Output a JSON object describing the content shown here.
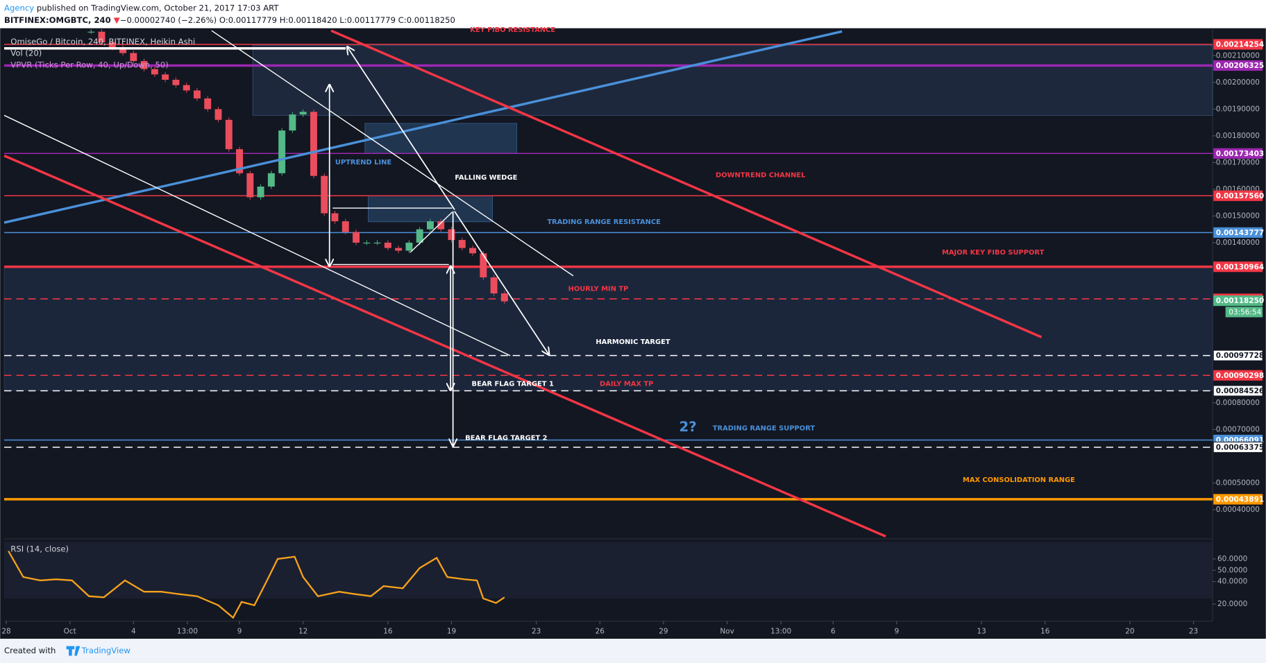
{
  "header": {
    "author": "Agency",
    "published": " published on TradingView.com, October 21, 2017 17:03 ART",
    "symbol": "BITFINEX:OMGBTC, 240 ",
    "arrow": "▼",
    "change": "−0.00002740 (−2.26%)",
    "ohlc": " O:0.00117779 H:0.00118420 L:0.00117779 C:0.00118250"
  },
  "footer": {
    "created": "Created with",
    "brand": "TradingView"
  },
  "chart_data": [
    {
      "type": "candlestick",
      "title": "OmiseGo / Bitcoin, 240, BITFINEX, Heikin Ashi",
      "indicators": [
        "Vol (20)",
        "VPVR (Ticks Per Row, 40, Up/Down, 50)"
      ],
      "x": [
        2,
        2.5,
        3,
        3.5,
        4,
        4.5,
        5,
        5.5,
        6,
        6.5,
        7,
        7.5,
        8,
        8.5,
        9,
        9.5,
        10,
        10.5,
        11,
        11.5,
        12,
        12.5,
        13,
        13.5,
        14,
        14.5,
        15,
        15.5,
        16,
        16.5,
        17,
        17.5,
        18,
        18.5,
        19,
        19.5,
        20,
        20.5,
        21,
        21.5
      ],
      "values": [
        0.00219,
        0.00215,
        0.00213,
        0.00211,
        0.00208,
        0.00205,
        0.00203,
        0.00201,
        0.00199,
        0.00197,
        0.00194,
        0.0019,
        0.00186,
        0.00175,
        0.00166,
        0.00157,
        0.00161,
        0.00166,
        0.00182,
        0.00188,
        0.00189,
        0.00165,
        0.00151,
        0.00148,
        0.00144,
        0.0014,
        0.0014,
        0.0014,
        0.00138,
        0.00137,
        0.0014,
        0.00145,
        0.00148,
        0.00145,
        0.00141,
        0.00138,
        0.00136,
        0.00127,
        0.00121,
        0.00118
      ],
      "up_color": "#53b987",
      "down_color": "#eb4d5c",
      "xlim": [
        -2.1,
        54.9
      ],
      "ylim": [
        0.0003,
        0.0022
      ],
      "yticks": [
        {
          "value": 0.0021,
          "label": "0.00210000"
        },
        {
          "value": 0.002,
          "label": "0.00200000"
        },
        {
          "value": 0.0019,
          "label": "0.00190000"
        },
        {
          "value": 0.0018,
          "label": "0.00180000"
        },
        {
          "value": 0.0017,
          "label": "0.00170000"
        },
        {
          "value": 0.0016,
          "label": "0.00160000"
        },
        {
          "value": 0.0015,
          "label": "0.00150000"
        },
        {
          "value": 0.0014,
          "label": "0.00140000"
        },
        {
          "value": 0.0008,
          "label": "0.00080000"
        },
        {
          "value": 0.0007,
          "label": "0.00070000"
        },
        {
          "value": 0.0005,
          "label": "0.00050000"
        },
        {
          "value": 0.0004,
          "label": "0.00040000"
        }
      ],
      "levels": [
        {
          "value": 0.00214254,
          "label": "0.00214254",
          "color": "#f23645",
          "style": "solid"
        },
        {
          "value": 0.00206325,
          "label": "0.00206325",
          "color": "#9c27b0",
          "style": "thick"
        },
        {
          "value": 0.00173403,
          "label": "0.00173403",
          "color": "#9c27b0",
          "style": "solid"
        },
        {
          "value": 0.0015756,
          "label": "0.00157560",
          "color": "#f23645",
          "style": "solid"
        },
        {
          "value": 0.00143777,
          "label": "0.00143777",
          "color": "#4a90d9",
          "style": "solid"
        },
        {
          "value": 0.00130964,
          "label": "0.00130964",
          "color": "#f23645",
          "style": "thick"
        },
        {
          "value": 0.00118947,
          "label": "0.00118947",
          "color": "#f23645",
          "style": "dashed"
        },
        {
          "value": 0.0011842,
          "label": "0.00118420",
          "color": "#f23645",
          "style": "none"
        },
        {
          "value": 0.0011825,
          "label": "0.00118250",
          "color": "#53b987",
          "style": "none"
        },
        {
          "value": 0.00097728,
          "label": "0.00097728",
          "color": "#ffffff",
          "style": "dashed"
        },
        {
          "value": 0.00090298,
          "label": "0.00090298",
          "color": "#f23645",
          "style": "dashed"
        },
        {
          "value": 0.00084526,
          "label": "0.00084526",
          "color": "#ffffff",
          "style": "dashed"
        },
        {
          "value": 0.00066091,
          "label": "0.00066091",
          "color": "#4a90d9",
          "style": "solid"
        },
        {
          "value": 0.00063375,
          "label": "0.00063375",
          "color": "#ffffff",
          "style": "dashed"
        },
        {
          "value": 0.00043891,
          "label": "0.00043891",
          "color": "#ff9800",
          "style": "thick"
        }
      ],
      "countdown": "03:56:54",
      "annotations": [
        {
          "text": "KEY FIBO RESISTANCE",
          "color": "#f23645"
        },
        {
          "text": "UPTREND LINE",
          "color": "#4a90d9"
        },
        {
          "text": "FALLING WEDGE",
          "color": "#ffffff"
        },
        {
          "text": "DOWNTREND CHANNEL",
          "color": "#f23645"
        },
        {
          "text": "TRADING RANGE RESISTANCE",
          "color": "#4a90d9"
        },
        {
          "text": "MAJOR KEY FIBO SUPPORT",
          "color": "#f23645"
        },
        {
          "text": "HOURLY MIN TP",
          "color": "#f23645"
        },
        {
          "text": "HARMONIC TARGET",
          "color": "#ffffff"
        },
        {
          "text": "BEAR FLAG TARGET 1",
          "color": "#ffffff"
        },
        {
          "text": "DAILY MAX TP",
          "color": "#f23645"
        },
        {
          "text": "2?",
          "color": "#4a90d9"
        },
        {
          "text": "TRADING RANGE SUPPORT",
          "color": "#4a90d9"
        },
        {
          "text": "BEAR FLAG TARGET 2",
          "color": "#ffffff"
        },
        {
          "text": "MAX CONSOLIDATION RANGE",
          "color": "#ff9800"
        }
      ]
    },
    {
      "type": "line",
      "title": "RSI (14, close)",
      "x": [
        -1.9,
        -1.2,
        -0.4,
        0.35,
        1.1,
        1.9,
        2.6,
        3.6,
        4.5,
        5.3,
        6.1,
        7,
        8,
        8.7,
        9.1,
        9.7,
        10.3,
        10.8,
        11.6,
        12,
        12.7,
        13.7,
        14.4,
        15.2,
        15.8,
        16.7,
        17.5,
        18.3,
        18.8,
        19.6,
        20.2,
        20.5,
        21.1,
        21.5
      ],
      "values": [
        67,
        44,
        41,
        42,
        41,
        27,
        26,
        41,
        31,
        31,
        29,
        27,
        19,
        8,
        22,
        19,
        41,
        60,
        62,
        44,
        27,
        31,
        29,
        27,
        36,
        34,
        52,
        61,
        44,
        42,
        41,
        25,
        21,
        26
      ],
      "color": "#f7a21b",
      "xlim": [
        -2.1,
        54.9
      ],
      "ylim": [
        5,
        75
      ],
      "yticks": [
        {
          "value": 60,
          "label": "60.0000"
        },
        {
          "value": 50,
          "label": "50.0000"
        },
        {
          "value": 40,
          "label": "40.0000"
        },
        {
          "value": 20,
          "label": "20.0000"
        }
      ],
      "xticks": [
        {
          "value": -2,
          "label": "28"
        },
        {
          "value": 1,
          "label": "Oct"
        },
        4,
        {
          "value": 6.54,
          "label": "13:00"
        },
        9,
        12,
        16,
        19,
        23,
        26,
        29,
        {
          "value": 32,
          "label": "Nov"
        },
        {
          "value": 34.54,
          "label": "13:00"
        },
        {
          "value": 37,
          "label": "6"
        },
        {
          "value": 40,
          "label": "9"
        },
        {
          "value": 44,
          "label": "13"
        },
        {
          "value": 47,
          "label": "16"
        },
        {
          "value": 51,
          "label": "20"
        },
        {
          "value": 54,
          "label": "23"
        }
      ]
    }
  ]
}
